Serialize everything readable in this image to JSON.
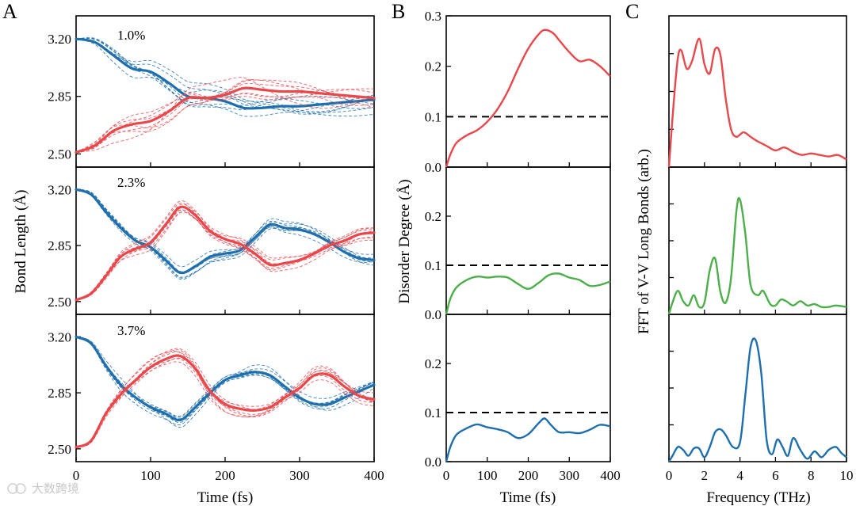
{
  "panel_labels": [
    "A",
    "B",
    "C"
  ],
  "watermark": "大数跨境",
  "colors": {
    "red": "#e8474b",
    "blue": "#1f6fad",
    "green": "#4daf4a",
    "axis": "#000000"
  },
  "chart_data": [
    {
      "type": "line",
      "panel": "A",
      "ylabel": "Bond Length (Å)",
      "xlabel": "Time (fs)",
      "xlim": [
        0,
        400
      ],
      "ylim": [
        2.42,
        3.34
      ],
      "xticks": [
        "0",
        "100",
        "200",
        "300",
        "400"
      ],
      "yticks": [
        "2.50",
        "2.85",
        "3.20"
      ],
      "subplots": [
        {
          "annotation": "1.0%",
          "series": [
            {
              "color": "blue",
              "x": [
                0,
                25,
                50,
                75,
                100,
                125,
                150,
                175,
                200,
                225,
                250,
                275,
                300,
                325,
                350,
                375,
                400
              ],
              "y": [
                3.2,
                3.18,
                3.1,
                3.02,
                3.0,
                2.93,
                2.85,
                2.84,
                2.82,
                2.78,
                2.78,
                2.79,
                2.79,
                2.8,
                2.81,
                2.82,
                2.83
              ]
            },
            {
              "color": "red",
              "x": [
                0,
                25,
                50,
                75,
                100,
                125,
                150,
                175,
                200,
                225,
                250,
                275,
                300,
                325,
                350,
                375,
                400
              ],
              "y": [
                2.51,
                2.55,
                2.64,
                2.68,
                2.7,
                2.76,
                2.84,
                2.84,
                2.86,
                2.9,
                2.89,
                2.88,
                2.88,
                2.87,
                2.86,
                2.85,
                2.84
              ]
            }
          ]
        },
        {
          "annotation": "2.3%",
          "series": [
            {
              "color": "blue",
              "x": [
                0,
                20,
                40,
                60,
                80,
                100,
                120,
                140,
                160,
                180,
                200,
                220,
                240,
                260,
                280,
                300,
                320,
                340,
                360,
                380,
                400
              ],
              "y": [
                3.2,
                3.17,
                3.06,
                2.96,
                2.88,
                2.84,
                2.76,
                2.68,
                2.72,
                2.78,
                2.8,
                2.82,
                2.9,
                2.98,
                2.96,
                2.95,
                2.92,
                2.87,
                2.81,
                2.77,
                2.76
              ]
            },
            {
              "color": "red",
              "x": [
                0,
                20,
                40,
                60,
                80,
                100,
                120,
                140,
                160,
                180,
                200,
                220,
                240,
                260,
                280,
                300,
                320,
                340,
                360,
                380,
                400
              ],
              "y": [
                2.51,
                2.55,
                2.66,
                2.78,
                2.83,
                2.87,
                2.98,
                3.09,
                3.04,
                2.94,
                2.89,
                2.86,
                2.8,
                2.73,
                2.74,
                2.76,
                2.8,
                2.85,
                2.88,
                2.92,
                2.93
              ]
            }
          ]
        },
        {
          "annotation": "3.7%",
          "series": [
            {
              "color": "blue",
              "x": [
                0,
                20,
                40,
                60,
                80,
                100,
                120,
                140,
                160,
                180,
                200,
                220,
                240,
                260,
                280,
                300,
                320,
                340,
                360,
                380,
                400
              ],
              "y": [
                3.2,
                3.16,
                3.02,
                2.9,
                2.82,
                2.76,
                2.72,
                2.68,
                2.76,
                2.85,
                2.93,
                2.96,
                2.98,
                2.96,
                2.89,
                2.82,
                2.78,
                2.78,
                2.82,
                2.86,
                2.9
              ]
            },
            {
              "color": "red",
              "x": [
                0,
                20,
                40,
                60,
                80,
                100,
                120,
                140,
                160,
                180,
                200,
                220,
                240,
                260,
                280,
                300,
                320,
                340,
                360,
                380,
                400
              ],
              "y": [
                2.51,
                2.55,
                2.72,
                2.84,
                2.93,
                3.01,
                3.06,
                3.08,
                3.0,
                2.86,
                2.78,
                2.75,
                2.74,
                2.76,
                2.82,
                2.88,
                2.96,
                2.96,
                2.89,
                2.83,
                2.81
              ]
            }
          ]
        }
      ]
    },
    {
      "type": "line",
      "panel": "B",
      "ylabel": "Disorder Degree (Å)",
      "xlabel": "Time (fs)",
      "xlim": [
        0,
        400
      ],
      "ylim": [
        0,
        0.3
      ],
      "xticks": [
        "0",
        "100",
        "200",
        "300",
        "400"
      ],
      "yticks": [
        "0.0",
        "0.1",
        "0.2",
        "0.3"
      ],
      "reference_line": 0.1,
      "subplots": [
        {
          "color": "red",
          "x": [
            0,
            10,
            25,
            50,
            75,
            100,
            125,
            150,
            175,
            200,
            225,
            240,
            260,
            275,
            300,
            325,
            350,
            375,
            400
          ],
          "y": [
            0.0,
            0.025,
            0.048,
            0.063,
            0.073,
            0.09,
            0.115,
            0.15,
            0.195,
            0.235,
            0.263,
            0.272,
            0.266,
            0.252,
            0.228,
            0.21,
            0.213,
            0.2,
            0.18
          ]
        },
        {
          "color": "green",
          "x": [
            0,
            10,
            25,
            50,
            75,
            100,
            125,
            150,
            175,
            200,
            225,
            250,
            275,
            300,
            325,
            350,
            375,
            400
          ],
          "y": [
            0.0,
            0.032,
            0.055,
            0.07,
            0.077,
            0.075,
            0.077,
            0.075,
            0.062,
            0.052,
            0.064,
            0.08,
            0.083,
            0.075,
            0.07,
            0.058,
            0.06,
            0.067
          ]
        },
        {
          "color": "blue",
          "x": [
            0,
            10,
            25,
            50,
            75,
            100,
            125,
            150,
            175,
            200,
            225,
            240,
            255,
            275,
            300,
            325,
            350,
            375,
            400
          ],
          "y": [
            0.0,
            0.03,
            0.055,
            0.068,
            0.076,
            0.07,
            0.066,
            0.06,
            0.048,
            0.056,
            0.078,
            0.088,
            0.075,
            0.06,
            0.06,
            0.058,
            0.065,
            0.075,
            0.072
          ]
        }
      ]
    },
    {
      "type": "line",
      "panel": "C",
      "ylabel": "FFT of V-V Long Bonds (arb.)",
      "xlabel": "Frequency (THz)",
      "xlim": [
        0,
        10
      ],
      "xticks": [
        "0",
        "2",
        "4",
        "6",
        "8",
        "10"
      ],
      "subplots": [
        {
          "color": "red",
          "x": [
            0,
            0.25,
            0.5,
            0.7,
            1.0,
            1.3,
            1.7,
            2.0,
            2.3,
            2.6,
            2.9,
            3.2,
            3.5,
            3.8,
            4.2,
            4.6,
            5.0,
            5.5,
            6.0,
            6.5,
            7.0,
            7.5,
            8.0,
            8.5,
            9.0,
            9.5,
            10.0
          ],
          "y": [
            0.0,
            0.4,
            0.72,
            0.77,
            0.65,
            0.7,
            0.85,
            0.68,
            0.62,
            0.78,
            0.74,
            0.45,
            0.25,
            0.2,
            0.23,
            0.2,
            0.17,
            0.14,
            0.11,
            0.13,
            0.1,
            0.08,
            0.09,
            0.08,
            0.07,
            0.08,
            0.05
          ]
        },
        {
          "color": "green",
          "x": [
            0,
            0.2,
            0.5,
            0.8,
            1.1,
            1.4,
            1.7,
            2.0,
            2.3,
            2.6,
            2.9,
            3.2,
            3.5,
            3.8,
            4.0,
            4.3,
            4.6,
            5.0,
            5.3,
            5.7,
            6.0,
            6.3,
            6.6,
            7.0,
            7.4,
            7.8,
            8.2,
            8.6,
            9.0,
            9.4,
            10.0
          ],
          "y": [
            0.0,
            0.08,
            0.16,
            0.09,
            0.06,
            0.13,
            0.05,
            0.08,
            0.3,
            0.38,
            0.15,
            0.08,
            0.25,
            0.7,
            0.78,
            0.55,
            0.2,
            0.13,
            0.16,
            0.07,
            0.06,
            0.1,
            0.09,
            0.06,
            0.09,
            0.06,
            0.07,
            0.05,
            0.05,
            0.06,
            0.05
          ]
        },
        {
          "color": "blue",
          "x": [
            0,
            0.2,
            0.5,
            0.8,
            1.1,
            1.4,
            1.7,
            2.0,
            2.3,
            2.6,
            2.9,
            3.2,
            3.6,
            4.0,
            4.3,
            4.6,
            4.9,
            5.2,
            5.5,
            5.8,
            6.1,
            6.4,
            6.7,
            7.0,
            7.4,
            7.8,
            8.2,
            8.6,
            9.0,
            9.4,
            9.7,
            10.0
          ],
          "y": [
            0.0,
            0.04,
            0.1,
            0.08,
            0.04,
            0.09,
            0.09,
            0.03,
            0.1,
            0.2,
            0.22,
            0.18,
            0.1,
            0.13,
            0.45,
            0.78,
            0.82,
            0.6,
            0.15,
            0.05,
            0.15,
            0.1,
            0.04,
            0.16,
            0.08,
            0.02,
            0.07,
            0.03,
            0.08,
            0.1,
            0.06,
            0.03
          ]
        }
      ]
    }
  ]
}
